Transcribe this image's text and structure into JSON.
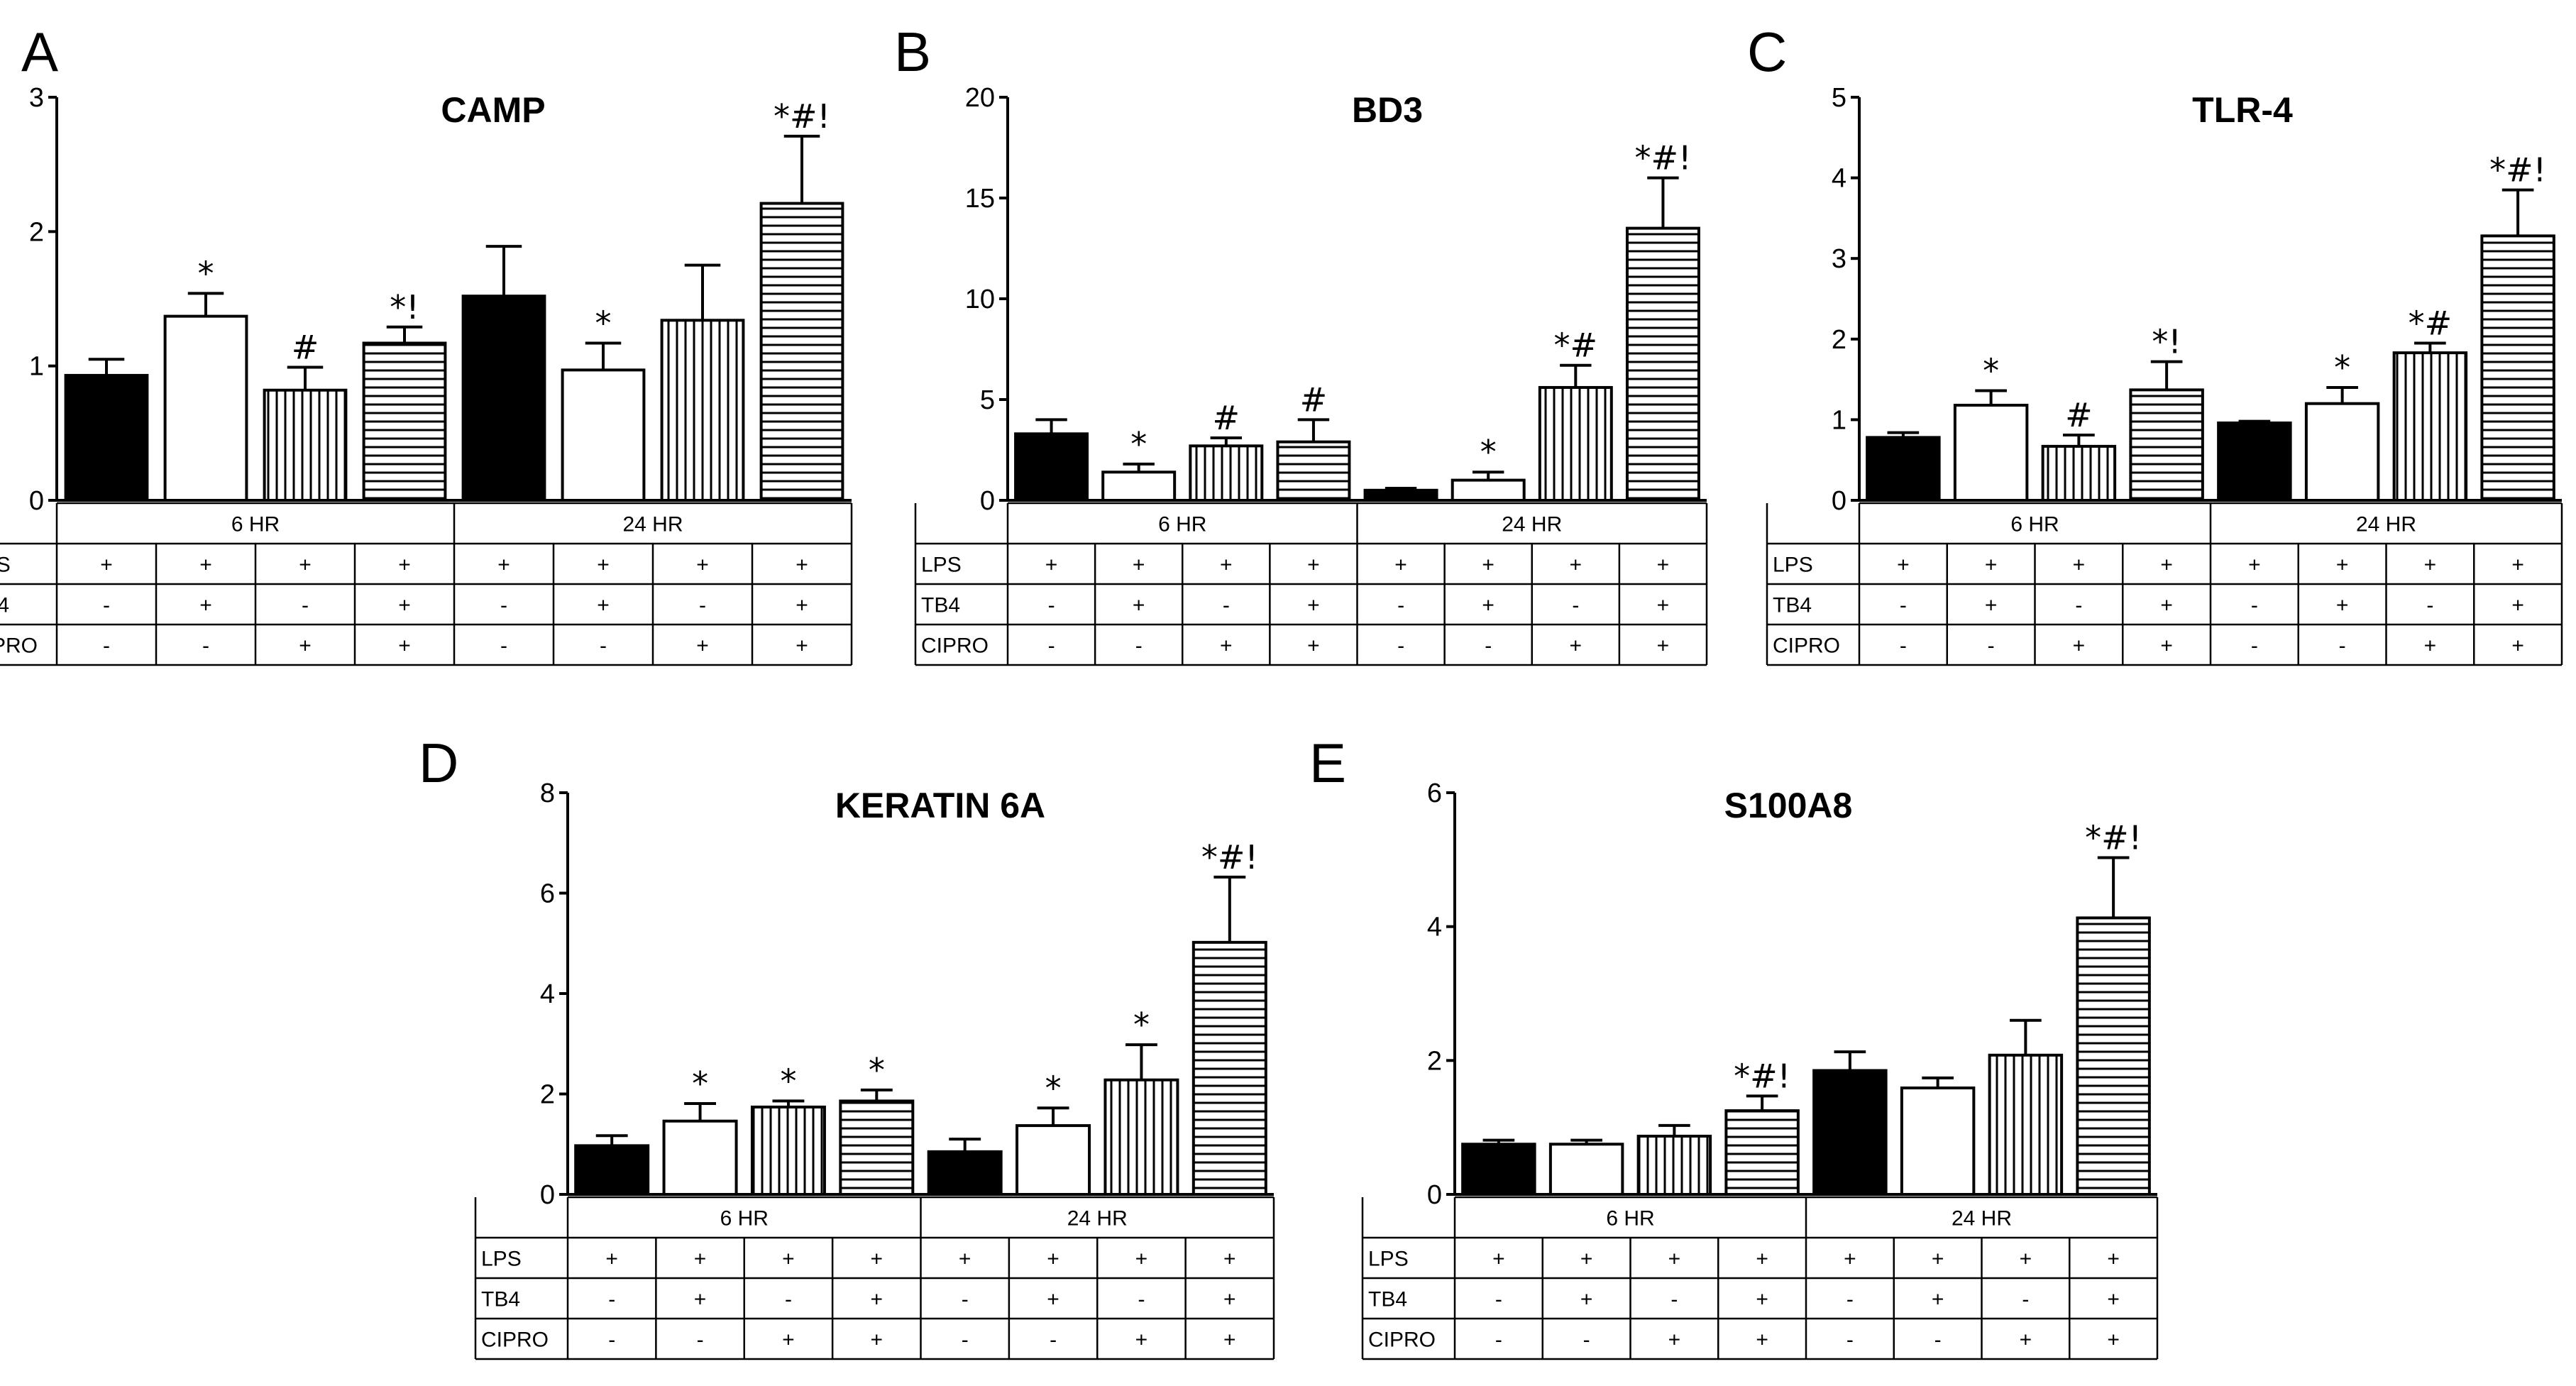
{
  "chart_data": [
    {
      "panel": "A",
      "type": "bar",
      "title": "CAMP",
      "ylim": [
        0,
        3
      ],
      "yticks": [
        0,
        1,
        2,
        3
      ],
      "groups": [
        "6 HR",
        "24 HR"
      ],
      "conditions": {
        "LPS": [
          "+",
          "+",
          "+",
          "+",
          "+",
          "+",
          "+",
          "+"
        ],
        "TB4": [
          "-",
          "+",
          "-",
          "+",
          "-",
          "+",
          "-",
          "+"
        ],
        "CIPRO": [
          "-",
          "-",
          "+",
          "+",
          "-",
          "-",
          "+",
          "+"
        ]
      },
      "values": [
        0.93,
        1.37,
        0.82,
        1.17,
        1.52,
        0.97,
        1.34,
        2.21
      ],
      "errors": [
        0.12,
        0.17,
        0.17,
        0.12,
        0.37,
        0.2,
        0.41,
        0.5
      ],
      "annotations": [
        "",
        "*",
        "#",
        "*!",
        "",
        "*",
        "",
        "*#!"
      ]
    },
    {
      "panel": "B",
      "type": "bar",
      "title": "BD3",
      "ylim": [
        0,
        20
      ],
      "yticks": [
        0,
        5,
        10,
        15,
        20
      ],
      "groups": [
        "6 HR",
        "24 HR"
      ],
      "conditions": {
        "LPS": [
          "+",
          "+",
          "+",
          "+",
          "+",
          "+",
          "+",
          "+"
        ],
        "TB4": [
          "-",
          "+",
          "-",
          "+",
          "-",
          "+",
          "-",
          "+"
        ],
        "CIPRO": [
          "-",
          "-",
          "+",
          "+",
          "-",
          "-",
          "+",
          "+"
        ]
      },
      "values": [
        3.3,
        1.4,
        2.7,
        2.9,
        0.5,
        1.0,
        5.6,
        13.5
      ],
      "errors": [
        0.7,
        0.4,
        0.4,
        1.1,
        0.1,
        0.4,
        1.1,
        2.5
      ],
      "annotations": [
        "",
        "*",
        "#",
        "#",
        "",
        "*",
        "*#",
        "*#!"
      ]
    },
    {
      "panel": "C",
      "type": "bar",
      "title": "TLR-4",
      "ylim": [
        0,
        5
      ],
      "yticks": [
        0,
        1,
        2,
        3,
        4,
        5
      ],
      "groups": [
        "6 HR",
        "24 HR"
      ],
      "conditions": {
        "LPS": [
          "+",
          "+",
          "+",
          "+",
          "+",
          "+",
          "+",
          "+"
        ],
        "TB4": [
          "-",
          "+",
          "-",
          "+",
          "-",
          "+",
          "-",
          "+"
        ],
        "CIPRO": [
          "-",
          "-",
          "+",
          "+",
          "-",
          "-",
          "+",
          "+"
        ]
      },
      "values": [
        0.78,
        1.18,
        0.67,
        1.37,
        0.96,
        1.2,
        1.83,
        3.28
      ],
      "errors": [
        0.06,
        0.18,
        0.14,
        0.35,
        0.02,
        0.2,
        0.12,
        0.57
      ],
      "annotations": [
        "",
        "*",
        "#",
        "*!",
        "",
        "*",
        "*#",
        "*#!"
      ]
    },
    {
      "panel": "D",
      "type": "bar",
      "title": "KERATIN 6A",
      "ylim": [
        0,
        8
      ],
      "yticks": [
        0,
        2,
        4,
        6,
        8
      ],
      "groups": [
        "6 HR",
        "24 HR"
      ],
      "conditions": {
        "LPS": [
          "+",
          "+",
          "+",
          "+",
          "+",
          "+",
          "+",
          "+"
        ],
        "TB4": [
          "-",
          "+",
          "-",
          "+",
          "-",
          "+",
          "-",
          "+"
        ],
        "CIPRO": [
          "-",
          "-",
          "+",
          "+",
          "-",
          "-",
          "+",
          "+"
        ]
      },
      "values": [
        0.97,
        1.46,
        1.74,
        1.86,
        0.85,
        1.37,
        2.28,
        5.02
      ],
      "errors": [
        0.2,
        0.35,
        0.12,
        0.22,
        0.25,
        0.35,
        0.7,
        1.3
      ],
      "annotations": [
        "",
        "*",
        "*",
        "*",
        "",
        "*",
        "*",
        "*#!"
      ]
    },
    {
      "panel": "E",
      "type": "bar",
      "title": "S100A8",
      "ylim": [
        0,
        6
      ],
      "yticks": [
        0,
        2,
        4,
        6
      ],
      "groups": [
        "6 HR",
        "24 HR"
      ],
      "conditions": {
        "LPS": [
          "+",
          "+",
          "+",
          "+",
          "+",
          "+",
          "+",
          "+"
        ],
        "TB4": [
          "-",
          "+",
          "-",
          "+",
          "-",
          "+",
          "-",
          "+"
        ],
        "CIPRO": [
          "-",
          "-",
          "+",
          "+",
          "-",
          "-",
          "+",
          "+"
        ]
      },
      "values": [
        0.75,
        0.75,
        0.87,
        1.25,
        1.85,
        1.59,
        2.08,
        4.13
      ],
      "errors": [
        0.06,
        0.06,
        0.16,
        0.22,
        0.28,
        0.15,
        0.52,
        0.9
      ],
      "annotations": [
        "",
        "",
        "",
        "*#!",
        "",
        "",
        "",
        "*#!"
      ]
    }
  ]
}
